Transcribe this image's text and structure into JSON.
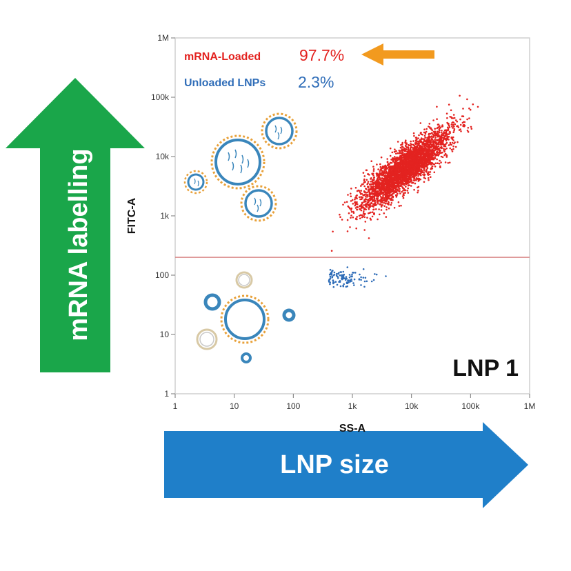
{
  "figure": {
    "vertical_arrow_label": "mRNA labelling",
    "horizontal_arrow_label": "LNP size",
    "sample_label": "LNP 1",
    "colors": {
      "green_arrow": "#1aa64a",
      "blue_arrow": "#1f7fc9",
      "orange_arrow": "#f29a1f",
      "loaded": "#e32320",
      "unloaded": "#2f6db8",
      "gate_line": "#d98a8a",
      "vesicle_blue": "#3a86bb",
      "vesicle_orange": "#e8a13a"
    }
  },
  "legend": {
    "loaded_label": "mRNA-Loaded",
    "loaded_percent": "97.7%",
    "unloaded_label": "Unloaded LNPs",
    "unloaded_percent": "2.3%"
  },
  "chart_data": {
    "type": "scatter",
    "xlabel": "SS-A",
    "ylabel": "FITC-A",
    "x_scale": "log",
    "y_scale": "log",
    "xlim": [
      1,
      1000000
    ],
    "ylim": [
      1,
      1000000
    ],
    "x_ticks": [
      1,
      10,
      100,
      1000,
      10000,
      100000,
      1000000
    ],
    "x_tick_labels": [
      "1",
      "10",
      "100",
      "1k",
      "10k",
      "100k",
      "1M"
    ],
    "y_ticks": [
      1,
      10,
      100,
      1000,
      10000,
      100000,
      1000000
    ],
    "y_tick_labels": [
      "1",
      "10",
      "100",
      "1k",
      "10k",
      "100k",
      "1M"
    ],
    "gate_threshold_y": 200,
    "grid": false,
    "series": [
      {
        "name": "mRNA-Loaded",
        "percent": 97.7,
        "color": "#e32320",
        "distribution": {
          "x_log10_center": 3.9,
          "y_log10_center": 3.8,
          "x_log10_sd": 0.38,
          "y_log10_sd": 0.33,
          "correlation": 0.85,
          "x_log10_min": 2.6,
          "y_log10_min": 2.3,
          "approx_points": 3400
        }
      },
      {
        "name": "Unloaded LNPs",
        "percent": 2.3,
        "color": "#2f6db8",
        "distribution": {
          "x_log10_center": 2.85,
          "y_log10_center": 1.95,
          "x_log10_sd": 0.28,
          "y_log10_sd": 0.07,
          "correlation": 0.0,
          "x_log10_min": 2.6,
          "y_log10_min": 1.8,
          "approx_points": 110
        }
      }
    ]
  }
}
